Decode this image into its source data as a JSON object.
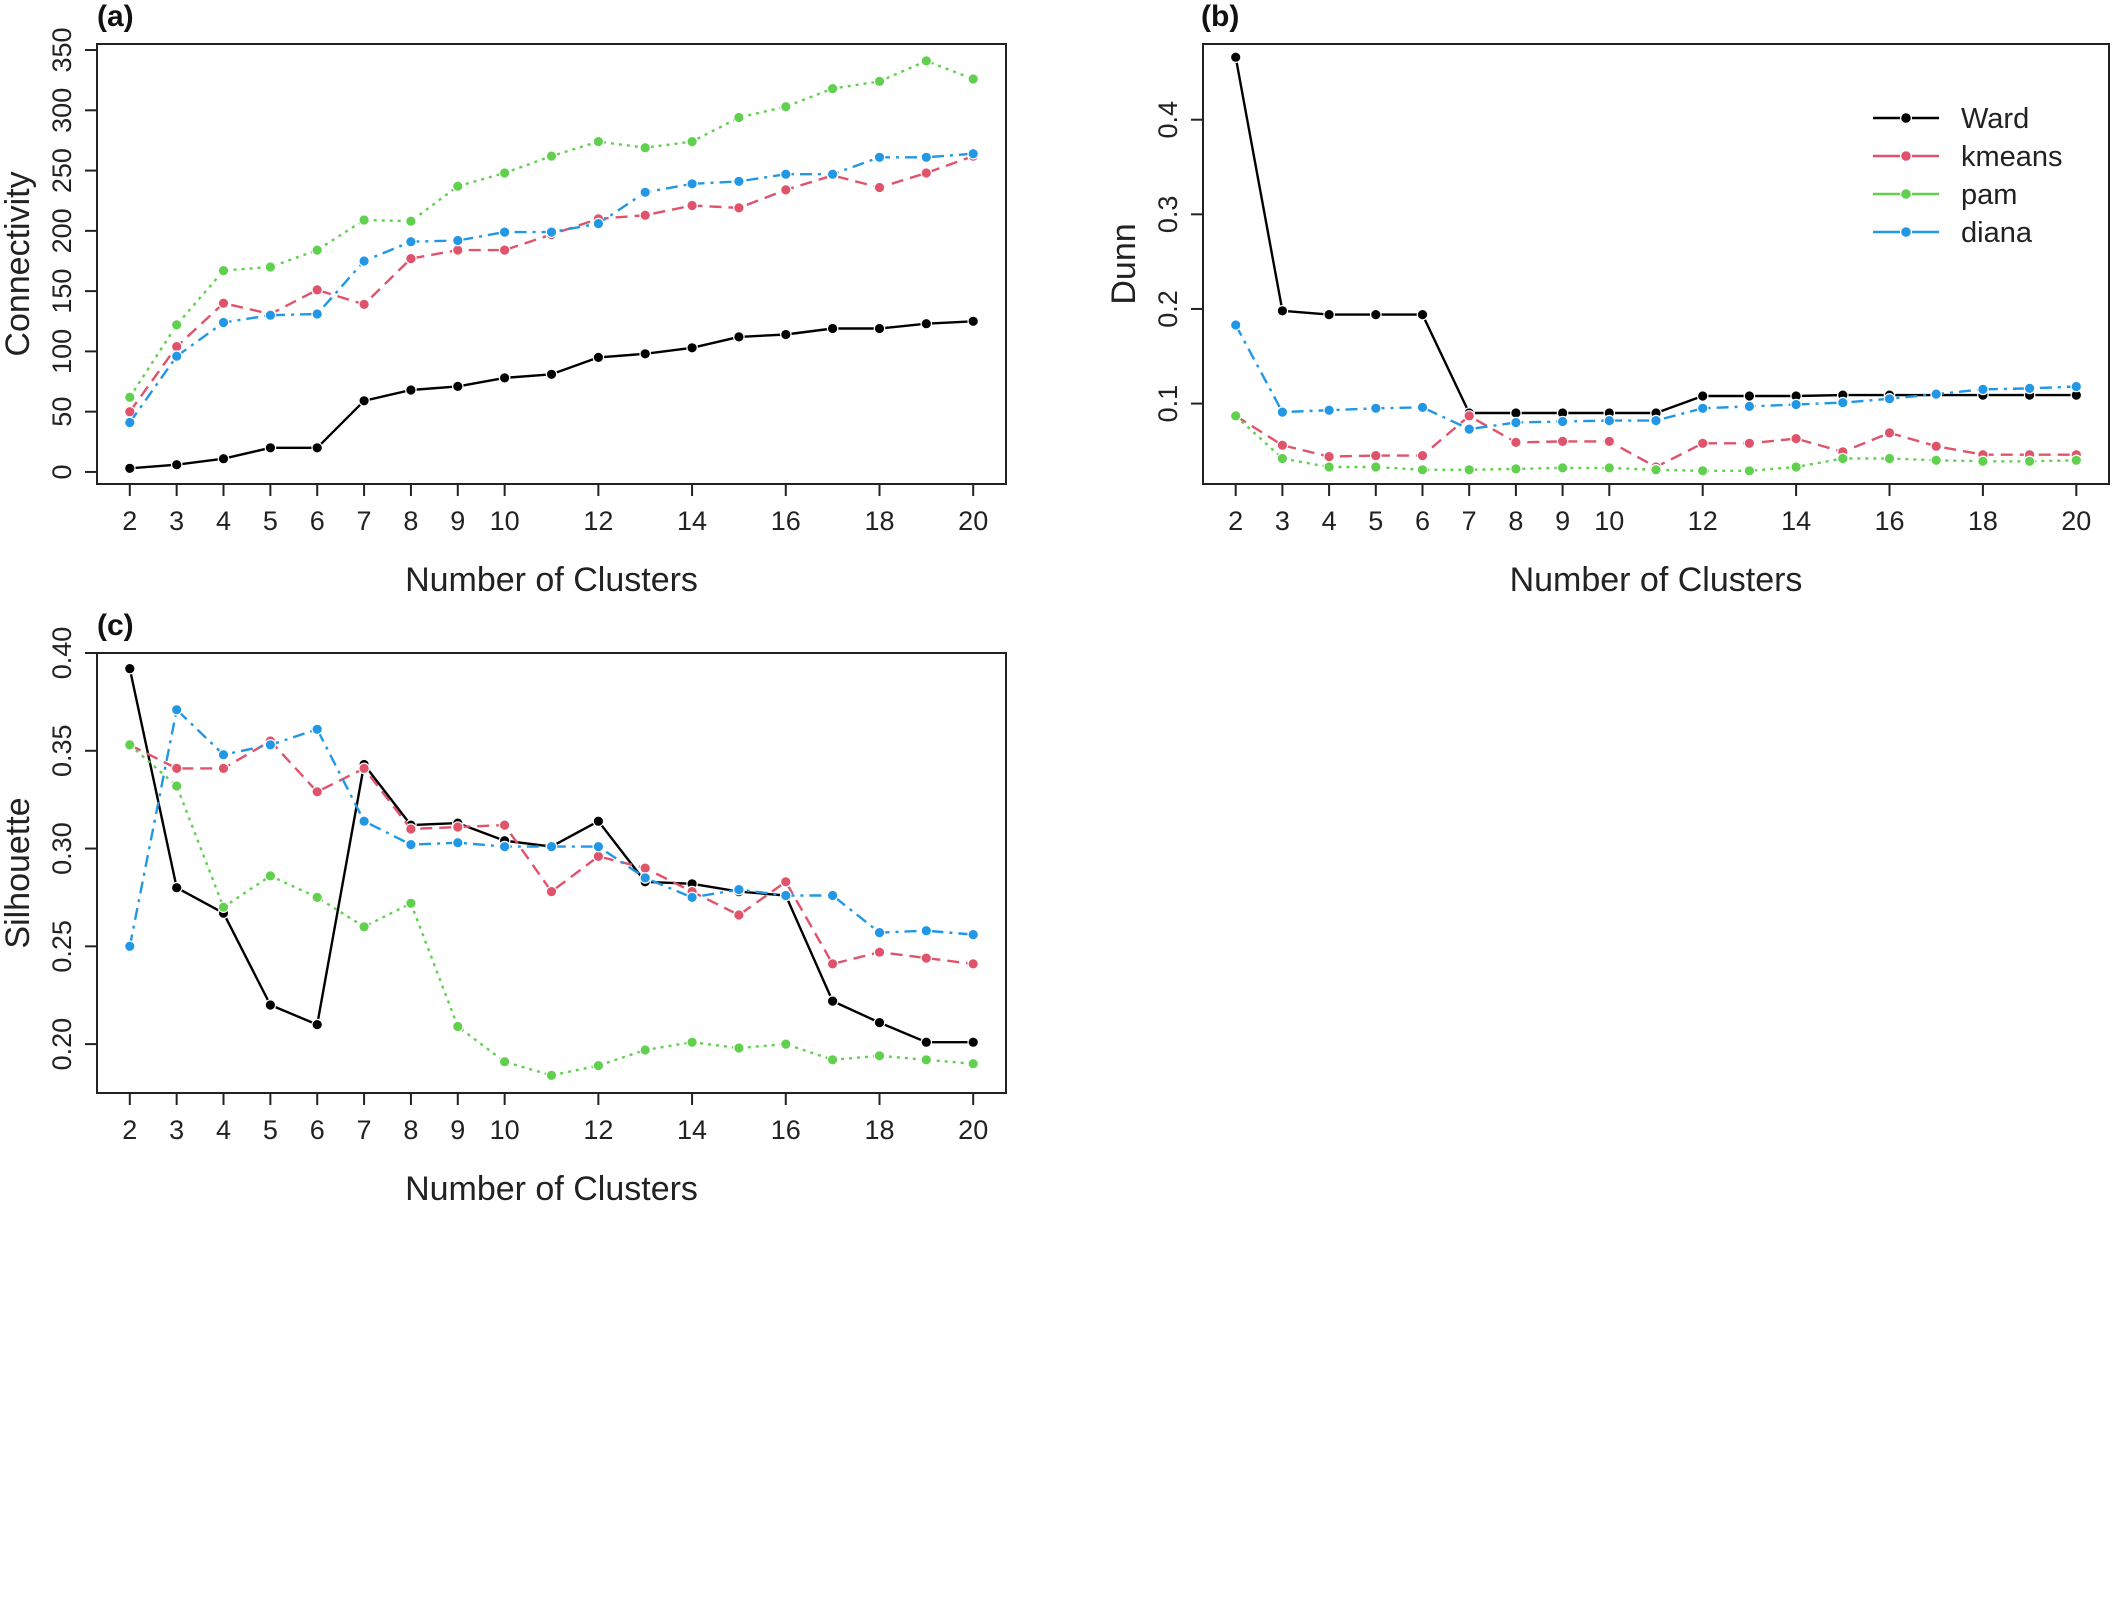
{
  "chart_data": [
    {
      "panel_label": "(a)",
      "type": "line",
      "xlabel": "Number of Clusters",
      "ylabel": "Connectivity",
      "x": [
        2,
        3,
        4,
        5,
        6,
        7,
        8,
        9,
        10,
        11,
        12,
        13,
        14,
        15,
        16,
        17,
        18,
        19,
        20
      ],
      "xticks": [
        2,
        3,
        4,
        5,
        6,
        7,
        8,
        9,
        10,
        12,
        14,
        16,
        18,
        20
      ],
      "yticks": [
        0,
        50,
        100,
        150,
        200,
        250,
        300,
        350
      ],
      "ylim": [
        -10,
        355
      ],
      "xlim": [
        1.3,
        20.7
      ],
      "legend": false,
      "series": [
        {
          "name": "Ward",
          "color": "#000000",
          "dash": "",
          "values": [
            3,
            6,
            11,
            20,
            20,
            59,
            68,
            71,
            78,
            81,
            95,
            98,
            103,
            112,
            114,
            119,
            119,
            123,
            125
          ]
        },
        {
          "name": "kmeans",
          "color": "#DF536B",
          "dash": "12,7",
          "values": [
            50,
            104,
            140,
            131,
            151,
            139,
            177,
            184,
            184,
            197,
            210,
            213,
            221,
            219,
            234,
            246,
            236,
            248,
            262
          ]
        },
        {
          "name": "pam",
          "color": "#61D04F",
          "dash": "3,5",
          "values": [
            62,
            122,
            167,
            170,
            184,
            209,
            208,
            237,
            248,
            262,
            274,
            269,
            274,
            294,
            303,
            318,
            324,
            341,
            326
          ]
        },
        {
          "name": "diana",
          "color": "#2297E6",
          "dash": "12,6,3,6",
          "values": [
            41,
            96,
            124,
            130,
            131,
            175,
            191,
            192,
            199,
            199,
            206,
            232,
            239,
            241,
            247,
            247,
            261,
            261,
            264
          ]
        }
      ]
    },
    {
      "panel_label": "(b)",
      "type": "line",
      "xlabel": "Number of Clusters",
      "ylabel": "Dunn",
      "x": [
        2,
        3,
        4,
        5,
        6,
        7,
        8,
        9,
        10,
        11,
        12,
        13,
        14,
        15,
        16,
        17,
        18,
        19,
        20
      ],
      "xticks": [
        2,
        3,
        4,
        5,
        6,
        7,
        8,
        9,
        10,
        12,
        14,
        16,
        18,
        20
      ],
      "yticks": [
        0.1,
        0.2,
        0.3,
        0.4
      ],
      "ylim": [
        0.015,
        0.48
      ],
      "xlim": [
        1.3,
        20.7
      ],
      "legend": true,
      "legend_position": "top-right",
      "series": [
        {
          "name": "Ward",
          "color": "#000000",
          "dash": "",
          "values": [
            0.466,
            0.198,
            0.194,
            0.194,
            0.194,
            0.09,
            0.09,
            0.09,
            0.09,
            0.09,
            0.108,
            0.108,
            0.108,
            0.109,
            0.109,
            0.109,
            0.109,
            0.109,
            0.109
          ]
        },
        {
          "name": "kmeans",
          "color": "#DF536B",
          "dash": "12,7",
          "values": [
            0.087,
            0.056,
            0.044,
            0.045,
            0.045,
            0.087,
            0.059,
            0.06,
            0.06,
            0.033,
            0.058,
            0.058,
            0.063,
            0.049,
            0.069,
            0.055,
            0.046,
            0.046,
            0.046
          ]
        },
        {
          "name": "pam",
          "color": "#61D04F",
          "dash": "3,5",
          "values": [
            0.087,
            0.042,
            0.033,
            0.033,
            0.03,
            0.03,
            0.031,
            0.032,
            0.032,
            0.03,
            0.029,
            0.029,
            0.033,
            0.042,
            0.042,
            0.04,
            0.039,
            0.039,
            0.04
          ]
        },
        {
          "name": "diana",
          "color": "#2297E6",
          "dash": "12,6,3,6",
          "values": [
            0.183,
            0.091,
            0.093,
            0.095,
            0.096,
            0.073,
            0.08,
            0.081,
            0.082,
            0.082,
            0.095,
            0.097,
            0.099,
            0.101,
            0.105,
            0.11,
            0.115,
            0.116,
            0.118
          ]
        }
      ]
    },
    {
      "panel_label": "(c)",
      "type": "line",
      "xlabel": "Number of Clusters",
      "ylabel": "Silhouette",
      "x": [
        2,
        3,
        4,
        5,
        6,
        7,
        8,
        9,
        10,
        11,
        12,
        13,
        14,
        15,
        16,
        17,
        18,
        19,
        20
      ],
      "xticks": [
        2,
        3,
        4,
        5,
        6,
        7,
        8,
        9,
        10,
        12,
        14,
        16,
        18,
        20
      ],
      "yticks": [
        0.2,
        0.25,
        0.3,
        0.35,
        0.4
      ],
      "yticklabels": [
        "0.20",
        "0.25",
        "0.30",
        "0.35",
        "0.40"
      ],
      "ylim": [
        0.175,
        0.4
      ],
      "xlim": [
        1.3,
        20.7
      ],
      "legend": false,
      "series": [
        {
          "name": "Ward",
          "color": "#000000",
          "dash": "",
          "values": [
            0.392,
            0.28,
            0.267,
            0.22,
            0.21,
            0.343,
            0.312,
            0.313,
            0.304,
            0.301,
            0.314,
            0.283,
            0.282,
            0.278,
            0.276,
            0.222,
            0.211,
            0.201,
            0.201
          ]
        },
        {
          "name": "kmeans",
          "color": "#DF536B",
          "dash": "12,7",
          "values": [
            0.353,
            0.341,
            0.341,
            0.355,
            0.329,
            0.341,
            0.31,
            0.311,
            0.312,
            0.278,
            0.296,
            0.29,
            0.278,
            0.266,
            0.283,
            0.241,
            0.247,
            0.244,
            0.241
          ]
        },
        {
          "name": "pam",
          "color": "#61D04F",
          "dash": "3,5",
          "values": [
            0.353,
            0.332,
            0.27,
            0.286,
            0.275,
            0.26,
            0.272,
            0.209,
            0.191,
            0.184,
            0.189,
            0.197,
            0.201,
            0.198,
            0.2,
            0.192,
            0.194,
            0.192,
            0.19
          ]
        },
        {
          "name": "diana",
          "color": "#2297E6",
          "dash": "12,6,3,6",
          "values": [
            0.25,
            0.371,
            0.348,
            0.353,
            0.361,
            0.314,
            0.302,
            0.303,
            0.301,
            0.301,
            0.301,
            0.285,
            0.275,
            0.279,
            0.276,
            0.276,
            0.257,
            0.258,
            0.256
          ]
        }
      ]
    }
  ]
}
